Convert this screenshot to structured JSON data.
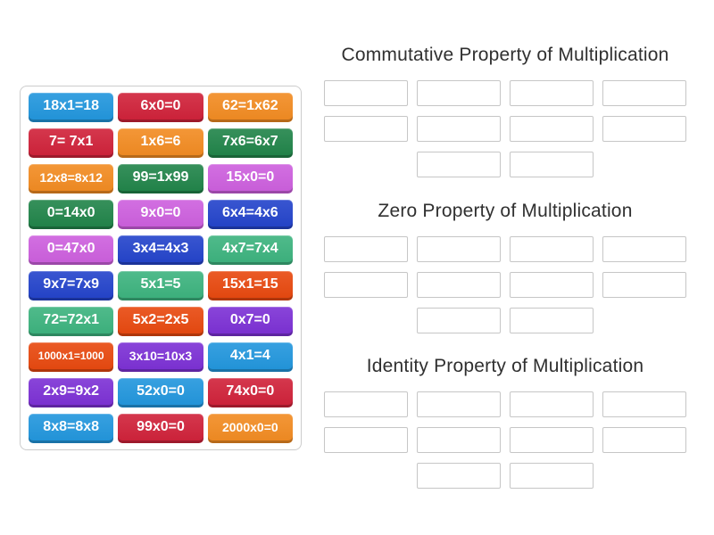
{
  "board": {
    "tiles": [
      {
        "label": "18x1=18",
        "color": "#2196dd"
      },
      {
        "label": "6x0=0",
        "color": "#d02139"
      },
      {
        "label": "62=1x62",
        "color": "#f28b21"
      },
      {
        "label": "7= 7x1",
        "color": "#d02139"
      },
      {
        "label": "1x6=6",
        "color": "#f28b21"
      },
      {
        "label": "7x6=6x7",
        "color": "#208449"
      },
      {
        "label": "12x8=8x12",
        "color": "#f28b21"
      },
      {
        "label": "99=1x99",
        "color": "#208449"
      },
      {
        "label": "15x0=0",
        "color": "#cd5fde"
      },
      {
        "label": "0=14x0",
        "color": "#208449"
      },
      {
        "label": "9x0=0",
        "color": "#cd5fde"
      },
      {
        "label": "6x4=4x6",
        "color": "#2343cb"
      },
      {
        "label": "0=47x0",
        "color": "#cd5fde"
      },
      {
        "label": "3x4=4x3",
        "color": "#2343cb"
      },
      {
        "label": "4x7=7x4",
        "color": "#3cb37e"
      },
      {
        "label": "9x7=7x9",
        "color": "#2343cb"
      },
      {
        "label": "5x1=5",
        "color": "#3cb37e"
      },
      {
        "label": "15x1=15",
        "color": "#e8480e"
      },
      {
        "label": "72=72x1",
        "color": "#3cb37e"
      },
      {
        "label": "5x2=2x5",
        "color": "#e8480e"
      },
      {
        "label": "0x7=0",
        "color": "#7c30d5"
      },
      {
        "label": "1000x1=1000",
        "color": "#e8480e"
      },
      {
        "label": "3x10=10x3",
        "color": "#7c30d5"
      },
      {
        "label": "4x1=4",
        "color": "#2196dd"
      },
      {
        "label": "2x9=9x2",
        "color": "#7c30d5"
      },
      {
        "label": "52x0=0",
        "color": "#2196dd"
      },
      {
        "label": "74x0=0",
        "color": "#d02139"
      },
      {
        "label": "8x8=8x8",
        "color": "#2196dd"
      },
      {
        "label": "99x0=0",
        "color": "#d02139"
      },
      {
        "label": "2000x0=0",
        "color": "#f28b21"
      }
    ]
  },
  "groups": [
    {
      "title": "Commutative Property of Multiplication",
      "slot_count": 10
    },
    {
      "title": "Zero Property of Multiplication",
      "slot_count": 10
    },
    {
      "title": "Identity Property of Multiplication",
      "slot_count": 10
    }
  ],
  "ui_colors": {
    "tile_text": "#ffffff",
    "panel_border": "#cccccc",
    "slot_border": "#c6c6c6",
    "heading_text": "#303030",
    "page_background": "#ffffff"
  }
}
